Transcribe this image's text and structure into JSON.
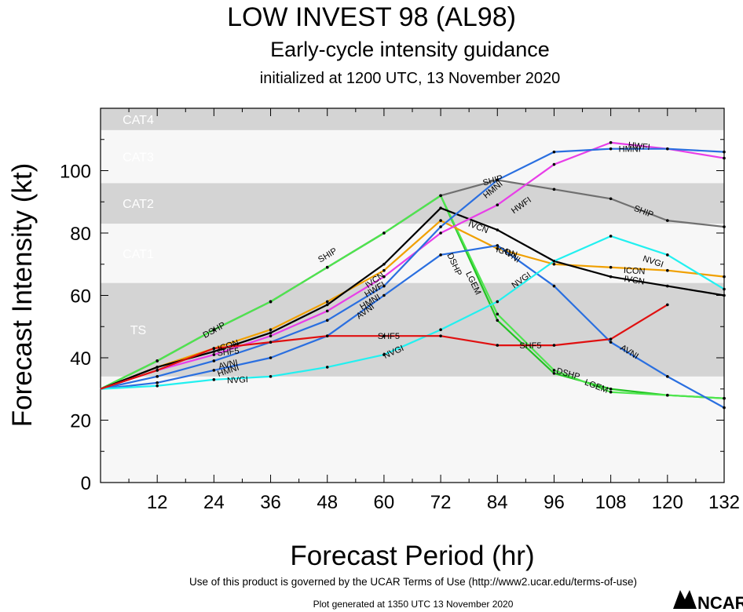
{
  "header": {
    "title": "LOW INVEST 98 (AL98)",
    "subtitle": "Early-cycle intensity guidance",
    "init_line": "initialized at 1200 UTC, 13 November 2020"
  },
  "footer": {
    "terms": "Use of this product is governed by the UCAR Terms of Use (http://www2.ucar.edu/terms-of-use)",
    "generated": "Plot generated at 1350 UTC   13 November 2020",
    "logo_text": "NCAR"
  },
  "chart_data": {
    "type": "line",
    "xlabel": "Forecast Period (hr)",
    "ylabel": "Forecast Intensity (kt)",
    "xlim": [
      0,
      132
    ],
    "ylim": [
      0,
      120
    ],
    "xticks": [
      12,
      24,
      36,
      48,
      60,
      72,
      84,
      96,
      108,
      120,
      132
    ],
    "yticks": [
      0,
      20,
      40,
      60,
      80,
      100
    ],
    "bands": [
      {
        "label": "TS",
        "from": 34,
        "to": 64,
        "color": "#d4d4d4"
      },
      {
        "label": "CAT1",
        "from": 64,
        "to": 83,
        "color": "#f7f7f7"
      },
      {
        "label": "CAT2",
        "from": 83,
        "to": 96,
        "color": "#d4d4d4"
      },
      {
        "label": "CAT3",
        "from": 96,
        "to": 113,
        "color": "#f7f7f7"
      },
      {
        "label": "CAT4",
        "from": 113,
        "to": 120,
        "color": "#d4d4d4"
      }
    ],
    "series": [
      {
        "name": "DSHP",
        "color": "#22c322",
        "x": [
          0,
          12,
          24,
          36,
          48,
          60,
          72,
          84,
          96,
          108,
          120,
          132
        ],
        "y": [
          30,
          39,
          49,
          58,
          69,
          80,
          92,
          52,
          35,
          30,
          28,
          27
        ]
      },
      {
        "name": "SHIP",
        "color": "#707070",
        "x": [
          0,
          12,
          24,
          36,
          48,
          60,
          72,
          84,
          96,
          108,
          120,
          132
        ],
        "y": [
          30,
          39,
          49,
          58,
          69,
          80,
          92,
          97,
          94,
          91,
          84,
          82
        ]
      },
      {
        "name": "LGEM",
        "color": "#4ee64e",
        "x": [
          0,
          12,
          24,
          36,
          48,
          60,
          72,
          84,
          96,
          108,
          120,
          132
        ],
        "y": [
          30,
          39,
          49,
          58,
          69,
          80,
          92,
          54,
          36,
          29,
          28,
          27
        ]
      },
      {
        "name": "ICON",
        "color": "#f0a000",
        "x": [
          0,
          12,
          24,
          36,
          48,
          60,
          72,
          84,
          96,
          108,
          120,
          132
        ],
        "y": [
          30,
          37,
          43,
          49,
          58,
          68,
          84,
          75,
          70,
          69,
          68,
          66
        ]
      },
      {
        "name": "IVCN",
        "color": "#000000",
        "x": [
          0,
          12,
          24,
          36,
          48,
          60,
          72,
          84,
          96,
          108,
          120,
          132
        ],
        "y": [
          30,
          37,
          42,
          48,
          57,
          70,
          88,
          81,
          71,
          66,
          63,
          60
        ]
      },
      {
        "name": "HWFI",
        "color": "#e83ee8",
        "x": [
          0,
          12,
          24,
          36,
          48,
          60,
          72,
          84,
          96,
          108,
          120,
          132
        ],
        "y": [
          30,
          36,
          41,
          47,
          55,
          66,
          80,
          89,
          102,
          109,
          107,
          104
        ]
      },
      {
        "name": "HMNI",
        "color": "#2a6fe0",
        "x": [
          0,
          12,
          24,
          36,
          48,
          60,
          72,
          84,
          96,
          108,
          120,
          132
        ],
        "y": [
          30,
          34,
          39,
          45,
          52,
          63,
          82,
          97,
          106,
          107,
          107,
          106
        ]
      },
      {
        "name": "AVNI",
        "color": "#2a6fe0",
        "x": [
          0,
          12,
          24,
          36,
          48,
          60,
          72,
          84,
          96,
          108,
          120,
          132
        ],
        "y": [
          30,
          32,
          36,
          40,
          47,
          60,
          73,
          76,
          63,
          45,
          34,
          24
        ]
      },
      {
        "name": "NVGI",
        "color": "#22f0f0",
        "x": [
          0,
          12,
          24,
          36,
          48,
          60,
          72,
          84,
          96,
          108,
          120,
          132
        ],
        "y": [
          30,
          31,
          33,
          34,
          37,
          41,
          49,
          58,
          71,
          79,
          73,
          62
        ]
      },
      {
        "name": "SHF5",
        "color": "#e01010",
        "x": [
          0,
          12,
          24,
          36,
          48,
          60,
          72,
          84,
          96,
          108,
          120
        ],
        "y": [
          30,
          36,
          43,
          45,
          47,
          47,
          47,
          44,
          44,
          46,
          57
        ]
      }
    ],
    "data_labels": [
      {
        "text": "DSHP",
        "series": "DSHP",
        "x": 24,
        "y": 49
      },
      {
        "text": "SHIP",
        "series": "SHIP",
        "x": 48,
        "y": 73
      },
      {
        "text": "DSHP",
        "series": "DSHP",
        "x": 75,
        "y": 70
      },
      {
        "text": "LGEM",
        "series": "LGEM",
        "x": 79,
        "y": 64
      },
      {
        "text": "DSHP",
        "series": "DSHP",
        "x": 99,
        "y": 35
      },
      {
        "text": "LGEM",
        "series": "LGEM",
        "x": 105,
        "y": 31
      },
      {
        "text": "SHIP",
        "series": "SHIP",
        "x": 83,
        "y": 97
      },
      {
        "text": "HMNI",
        "series": "HMNI",
        "x": 83,
        "y": 94
      },
      {
        "text": "HWFI",
        "series": "HWFI",
        "x": 89,
        "y": 89
      },
      {
        "text": "SHIP",
        "series": "SHIP",
        "x": 115,
        "y": 87
      },
      {
        "text": "HWFI",
        "series": "HWFI",
        "x": 114,
        "y": 108
      },
      {
        "text": "HMNI",
        "series": "HMNI",
        "x": 112,
        "y": 107
      },
      {
        "text": "IVCN",
        "series": "IVCN",
        "x": 80,
        "y": 82
      },
      {
        "text": "ICON",
        "series": "ICON",
        "x": 86,
        "y": 74
      },
      {
        "text": "AVNI",
        "series": "AVNI",
        "x": 87,
        "y": 73
      },
      {
        "text": "NVGI",
        "series": "NVGI",
        "x": 89,
        "y": 65
      },
      {
        "text": "NVGI",
        "series": "NVGI",
        "x": 117,
        "y": 71
      },
      {
        "text": "ICON",
        "series": "ICON",
        "x": 113,
        "y": 68
      },
      {
        "text": "IVCN",
        "series": "IVCN",
        "x": 113,
        "y": 65
      },
      {
        "text": "AVNI",
        "series": "AVNI",
        "x": 112,
        "y": 42
      },
      {
        "text": "SHF5",
        "series": "SHF5",
        "x": 61,
        "y": 47
      },
      {
        "text": "SHF5",
        "series": "SHF5",
        "x": 91,
        "y": 44
      },
      {
        "text": "NVGI",
        "series": "NVGI",
        "x": 62,
        "y": 42
      },
      {
        "text": "NVGI",
        "series": "NVGI",
        "x": 29,
        "y": 33
      },
      {
        "text": "ICON",
        "series": "ICON",
        "x": 27,
        "y": 44
      },
      {
        "text": "SHF5",
        "series": "SHF5",
        "x": 27,
        "y": 42
      },
      {
        "text": "AVNI",
        "series": "AVNI",
        "x": 27,
        "y": 38
      },
      {
        "text": "HMNI",
        "series": "HMNI",
        "x": 27,
        "y": 36
      },
      {
        "text": "IVCN",
        "series": "IVCN",
        "x": 58,
        "y": 65
      },
      {
        "text": "HWFI",
        "series": "HWFI",
        "x": 58,
        "y": 62
      },
      {
        "text": "HMNI",
        "series": "HMNI",
        "x": 57,
        "y": 58
      },
      {
        "text": "AVNI",
        "series": "AVNI",
        "x": 56,
        "y": 55
      }
    ]
  }
}
